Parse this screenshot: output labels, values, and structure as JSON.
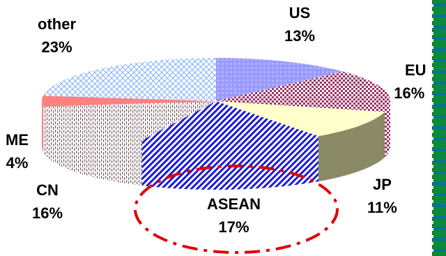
{
  "chart_data": {
    "type": "pie",
    "title": "",
    "slices": [
      {
        "name": "US",
        "value": 13,
        "label": "13%"
      },
      {
        "name": "EU",
        "value": 16,
        "label": "16%"
      },
      {
        "name": "JP",
        "value": 11,
        "label": "11%"
      },
      {
        "name": "ASEAN",
        "value": 17,
        "label": "17%"
      },
      {
        "name": "CN",
        "value": 16,
        "label": "16%"
      },
      {
        "name": "ME",
        "value": 4,
        "label": "4%"
      },
      {
        "name": "other",
        "value": 23,
        "label": "23%"
      }
    ],
    "colors": {
      "US": "#9999ff",
      "EU": "#993366",
      "JP": "#ffffcc",
      "ASEAN": "#1a1ad6",
      "CN": "#7a5f6a",
      "ME": "#ff8080",
      "other": "#a8c8ff"
    },
    "highlight": "ASEAN"
  }
}
